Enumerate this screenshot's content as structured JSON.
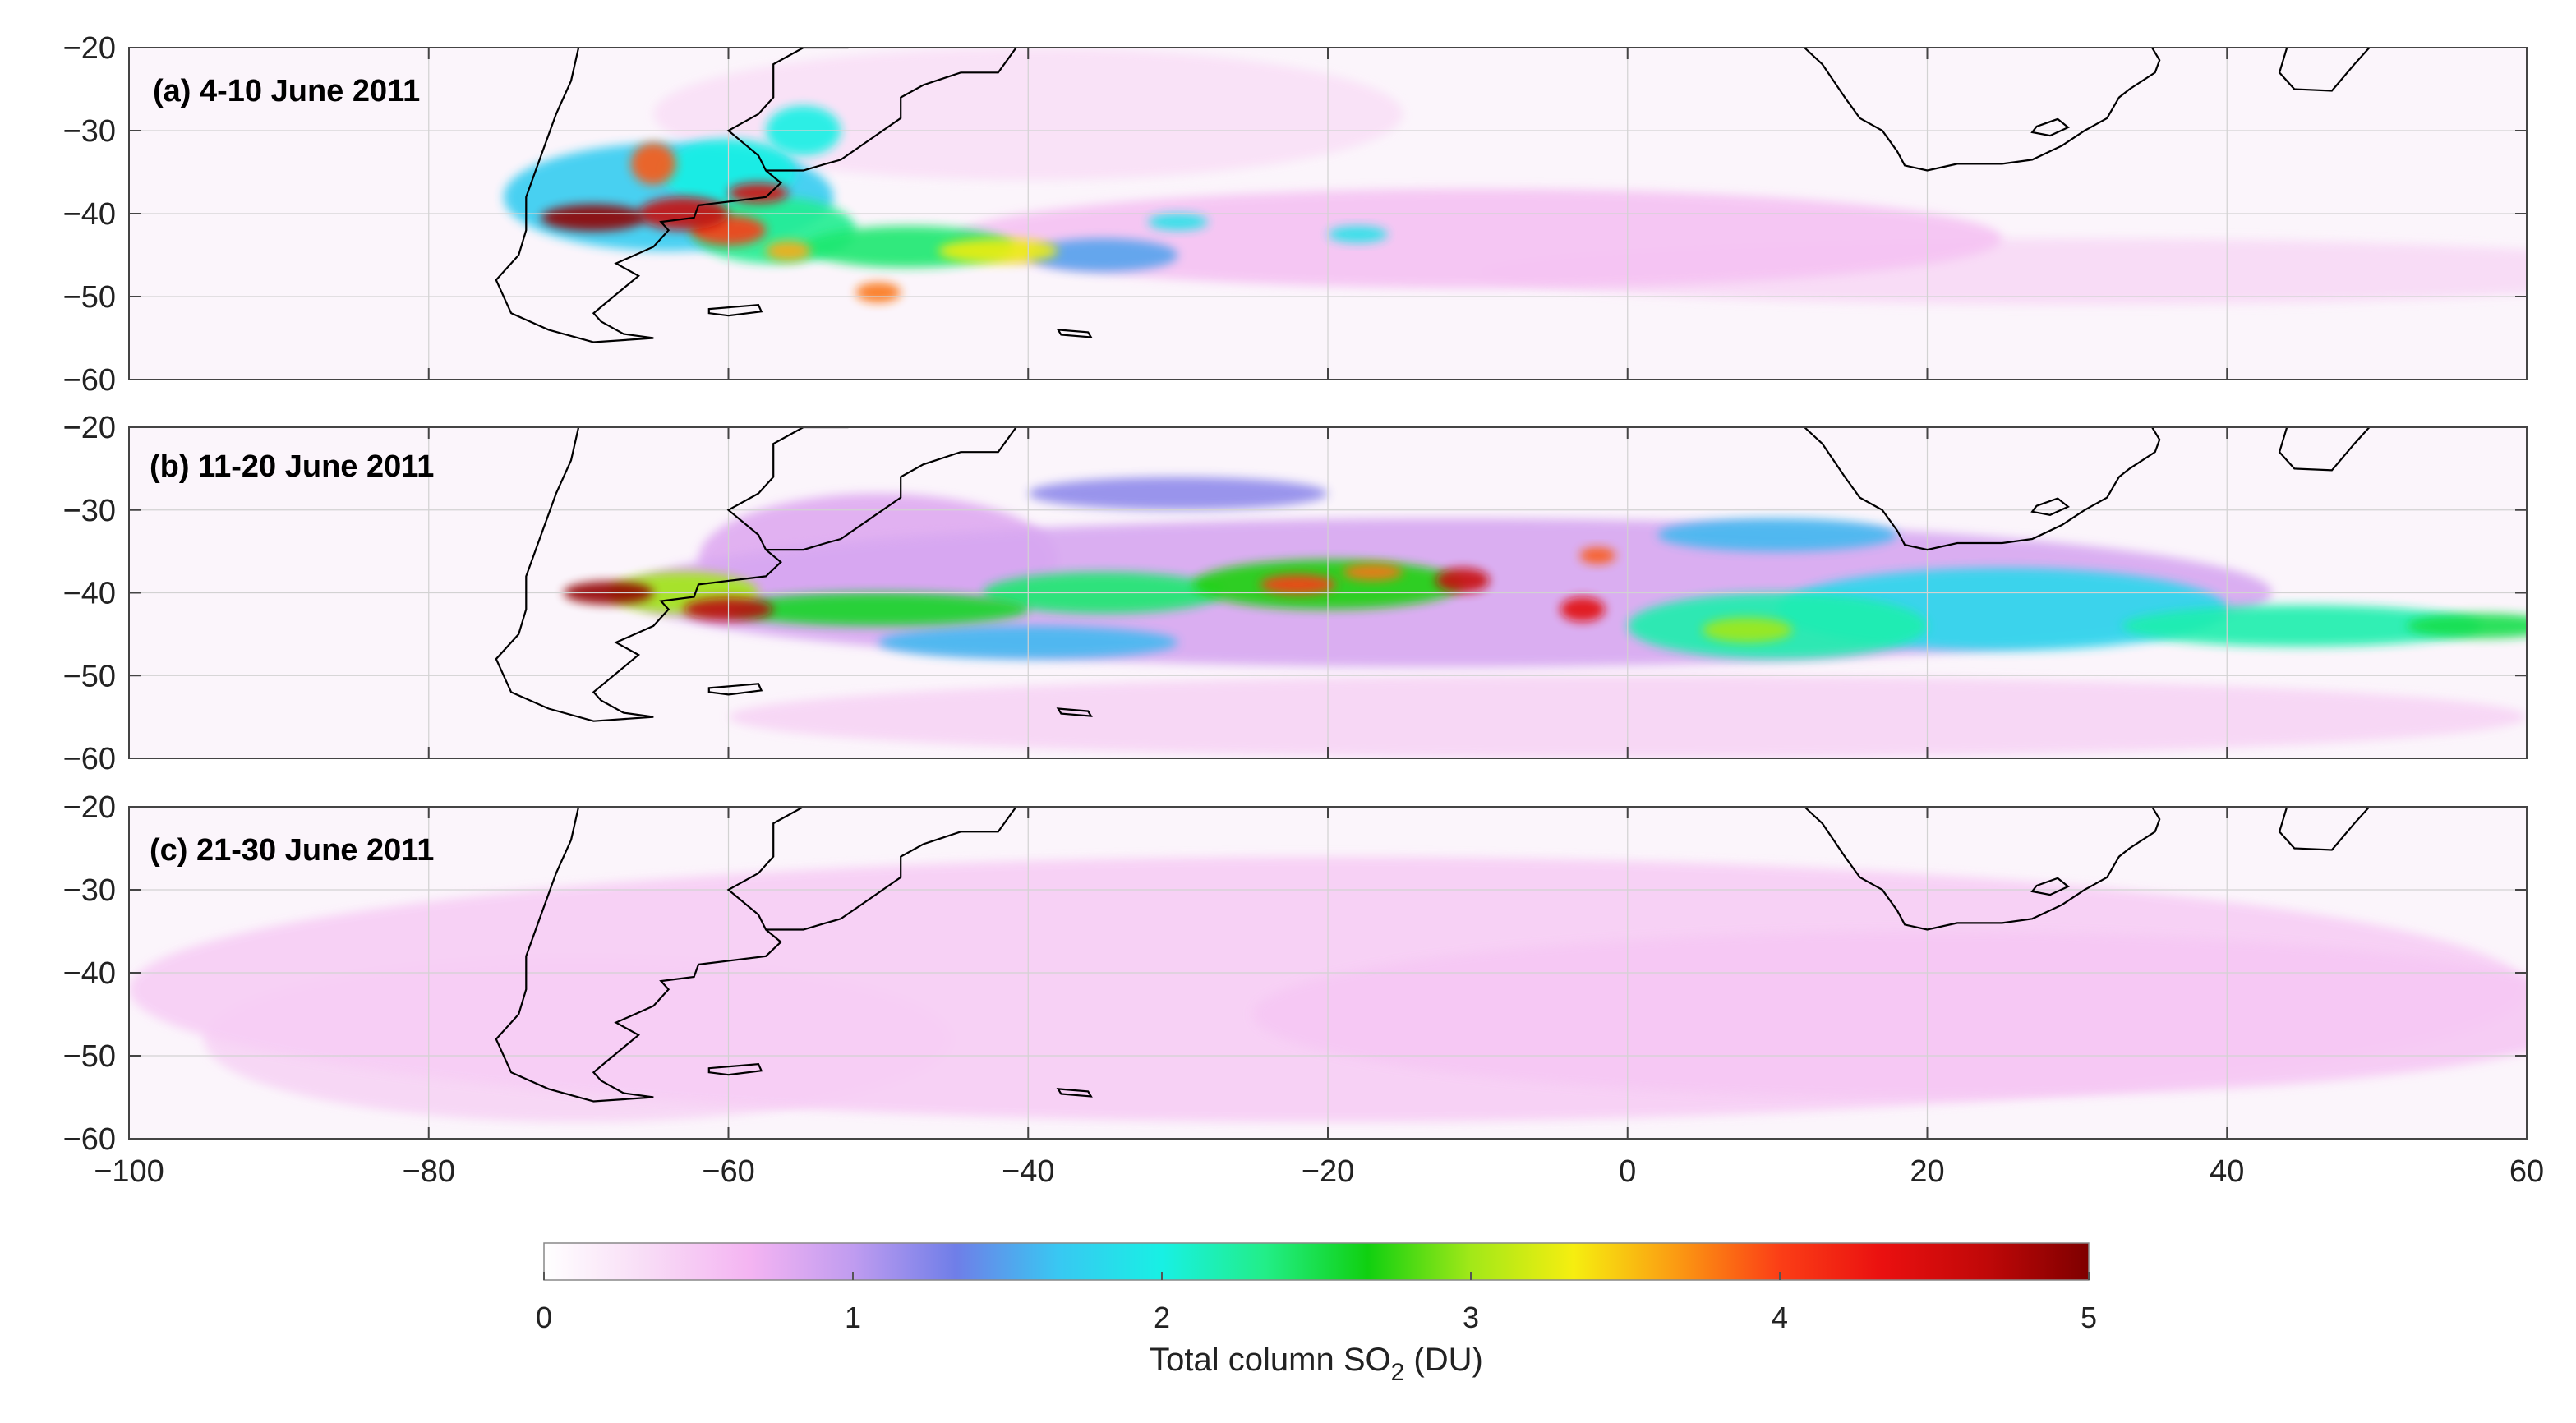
{
  "chart_data": {
    "type": "heatmap",
    "map": "filled-contour field of total column SO2 over the South Atlantic / South America / southern Africa, with coastlines",
    "x_ticks": [
      -100,
      -80,
      -60,
      -40,
      -20,
      0,
      20,
      40,
      60
    ],
    "y_ticks": [
      -20,
      -30,
      -40,
      -50,
      -60
    ],
    "xlim": [
      -100,
      60
    ],
    "ylim": [
      -60,
      -20
    ],
    "grid": true,
    "colorbar": {
      "label_prefix": "Total column SO",
      "label_sub": "2",
      "label_suffix": " (DU)",
      "range": [
        0,
        5
      ],
      "ticks": [
        "0",
        "1",
        "2",
        "3",
        "4",
        "5"
      ],
      "placement": "bottom",
      "colors": [
        "#ffffff",
        "#f8dcf6",
        "#f4b4f2",
        "#c09cf0",
        "#6f7ee8",
        "#38c8f2",
        "#18f0e4",
        "#22ee88",
        "#10d010",
        "#a2e818",
        "#f6ee10",
        "#fb9a12",
        "#fb3e16",
        "#ea1010",
        "#c00808",
        "#7e0000"
      ]
    },
    "panels": [
      {
        "label": "(a) 4-10 June 2011",
        "blobs": [
          {
            "lon": -64,
            "lat": -38,
            "rx": 11,
            "ry": 6.5,
            "v": 1.7
          },
          {
            "lon": -57,
            "lat": -42,
            "rx": 5.5,
            "ry": 4,
            "v": 2.3
          },
          {
            "lon": -60,
            "lat": -35,
            "rx": 4.5,
            "ry": 4,
            "v": 2.0
          },
          {
            "lon": -55,
            "lat": -30,
            "rx": 2.5,
            "ry": 3,
            "v": 2.0
          },
          {
            "lon": -69,
            "lat": -40.5,
            "rx": 3.5,
            "ry": 1.6,
            "v": 4.9
          },
          {
            "lon": -63,
            "lat": -40,
            "rx": 3,
            "ry": 2,
            "v": 4.6
          },
          {
            "lon": -60,
            "lat": -42,
            "rx": 2.5,
            "ry": 1.8,
            "v": 4.0
          },
          {
            "lon": -65,
            "lat": -34,
            "rx": 1.5,
            "ry": 2.5,
            "v": 3.9
          },
          {
            "lon": -58,
            "lat": -37.5,
            "rx": 2,
            "ry": 1.2,
            "v": 4.5
          },
          {
            "lon": -56,
            "lat": -44.5,
            "rx": 1.5,
            "ry": 1.2,
            "v": 3.6
          },
          {
            "lon": -48,
            "lat": -44,
            "rx": 7,
            "ry": 2.5,
            "v": 2.4
          },
          {
            "lon": -42,
            "lat": -44.5,
            "rx": 4,
            "ry": 1.5,
            "v": 3.3
          },
          {
            "lon": -50,
            "lat": -49.5,
            "rx": 1.5,
            "ry": 1.2,
            "v": 3.8
          },
          {
            "lon": -35,
            "lat": -45,
            "rx": 5,
            "ry": 2,
            "v": 1.5
          },
          {
            "lon": -30,
            "lat": -41,
            "rx": 2,
            "ry": 1,
            "v": 1.9
          },
          {
            "lon": -18,
            "lat": -42.5,
            "rx": 2,
            "ry": 1,
            "v": 1.9
          },
          {
            "lon": -10,
            "lat": -43,
            "rx": 35,
            "ry": 6,
            "v": 0.55
          },
          {
            "lon": 30,
            "lat": -47,
            "rx": 40,
            "ry": 4,
            "v": 0.35
          },
          {
            "lon": -40,
            "lat": -28,
            "rx": 25,
            "ry": 8,
            "v": 0.3
          }
        ]
      },
      {
        "label": "(b) 11-20 June 2011",
        "blobs": [
          {
            "lon": -12,
            "lat": -40,
            "rx": 55,
            "ry": 9,
            "v": 0.85
          },
          {
            "lon": -50,
            "lat": -36,
            "rx": 12,
            "ry": 8,
            "v": 0.8
          },
          {
            "lon": -68,
            "lat": -40,
            "rx": 3,
            "ry": 1.4,
            "v": 4.9
          },
          {
            "lon": -60,
            "lat": -42,
            "rx": 3,
            "ry": 1.4,
            "v": 4.7
          },
          {
            "lon": -63,
            "lat": -40,
            "rx": 5,
            "ry": 2.5,
            "v": 3.0
          },
          {
            "lon": -50,
            "lat": -42,
            "rx": 10,
            "ry": 2,
            "v": 2.6
          },
          {
            "lon": -35,
            "lat": -40,
            "rx": 8,
            "ry": 2.5,
            "v": 2.4
          },
          {
            "lon": -20,
            "lat": -39,
            "rx": 9,
            "ry": 3,
            "v": 2.7
          },
          {
            "lon": -22,
            "lat": -39,
            "rx": 2.5,
            "ry": 1.2,
            "v": 4.0
          },
          {
            "lon": -17,
            "lat": -37.5,
            "rx": 2,
            "ry": 1,
            "v": 3.8
          },
          {
            "lon": -11,
            "lat": -38.5,
            "rx": 1.8,
            "ry": 1.5,
            "v": 4.6
          },
          {
            "lon": -3,
            "lat": -42,
            "rx": 1.5,
            "ry": 1.5,
            "v": 4.4
          },
          {
            "lon": -2,
            "lat": -35.5,
            "rx": 1.2,
            "ry": 1,
            "v": 3.9
          },
          {
            "lon": 10,
            "lat": -44,
            "rx": 10,
            "ry": 4,
            "v": 2.2
          },
          {
            "lon": 8,
            "lat": -44.5,
            "rx": 3,
            "ry": 1.5,
            "v": 3.0
          },
          {
            "lon": 25,
            "lat": -42,
            "rx": 15,
            "ry": 5,
            "v": 1.8
          },
          {
            "lon": 45,
            "lat": -44,
            "rx": 12,
            "ry": 2.5,
            "v": 2.2
          },
          {
            "lon": 57,
            "lat": -44,
            "rx": 5,
            "ry": 1.5,
            "v": 2.5
          },
          {
            "lon": 10,
            "lat": -33,
            "rx": 8,
            "ry": 2,
            "v": 1.6
          },
          {
            "lon": -30,
            "lat": -28,
            "rx": 10,
            "ry": 2,
            "v": 1.2
          },
          {
            "lon": -40,
            "lat": -46,
            "rx": 10,
            "ry": 2,
            "v": 1.6
          },
          {
            "lon": 0,
            "lat": -55,
            "rx": 60,
            "ry": 5,
            "v": 0.4
          }
        ]
      },
      {
        "label": "(c) 21-30 June 2011",
        "blobs": [
          {
            "lon": -20,
            "lat": -42,
            "rx": 80,
            "ry": 16,
            "v": 0.45
          },
          {
            "lon": 20,
            "lat": -45,
            "rx": 45,
            "ry": 10,
            "v": 0.5
          },
          {
            "lon": -70,
            "lat": -48,
            "rx": 25,
            "ry": 10,
            "v": 0.4
          }
        ]
      }
    ]
  }
}
